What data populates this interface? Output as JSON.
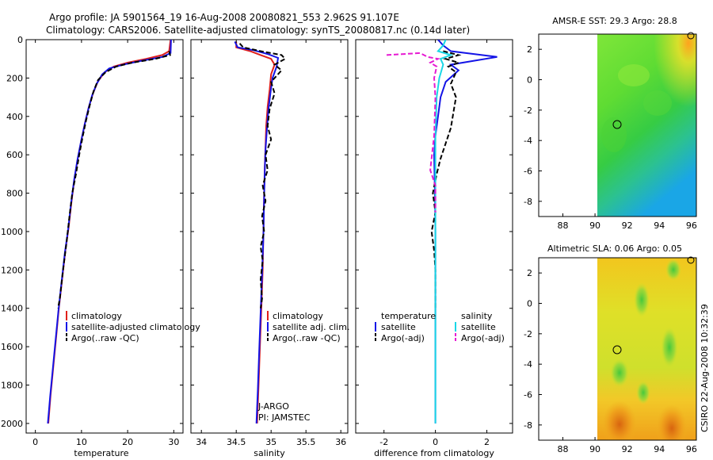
{
  "title_line1": "Argo profile: JA 5901564_19 16-Aug-2008 20080821_553 2.962S 91.107E",
  "title_line2": "Climatology: CARS2006. Satellite-adjusted climatology: synTS_20080817.nc (0.14d later)",
  "side_label": "CSIRO 22-Aug-2008 10:32:39",
  "colors": {
    "clim": "#e0201b",
    "sat": "#1414e6",
    "argo": "#000000",
    "sal_sat": "#19d7e6",
    "sal_argo": "#e619d2"
  },
  "chart_data": [
    {
      "id": "temperature",
      "type": "line",
      "xlabel": "temperature",
      "ylabel": "",
      "xlim": [
        -2,
        32
      ],
      "ylim": [
        2050,
        0
      ],
      "xticks": [
        "0",
        "10",
        "20",
        "30"
      ],
      "xtick_values": [
        0,
        10,
        20,
        30
      ],
      "yticks": [
        "0",
        "200",
        "400",
        "600",
        "800",
        "1000",
        "1200",
        "1400",
        "1600",
        "1800",
        "2000"
      ],
      "ytick_values": [
        0,
        200,
        400,
        600,
        800,
        1000,
        1200,
        1400,
        1600,
        1800,
        2000
      ],
      "legend": [
        "climatology",
        "satellite-adjusted climatology",
        "Argo(..raw -QC)"
      ],
      "series": [
        {
          "name": "climatology",
          "color": "#e0201b",
          "dash": false,
          "points": [
            [
              29.3,
              0
            ],
            [
              29.0,
              60
            ],
            [
              27.5,
              80
            ],
            [
              24,
              100
            ],
            [
              20,
              120
            ],
            [
              17,
              140
            ],
            [
              15,
              170
            ],
            [
              13.5,
              220
            ],
            [
              12.5,
              280
            ],
            [
              11.6,
              350
            ],
            [
              10.8,
              430
            ],
            [
              10,
              520
            ],
            [
              9.2,
              620
            ],
            [
              8.5,
              720
            ],
            [
              7.8,
              850
            ],
            [
              7.2,
              980
            ],
            [
              6.5,
              1100
            ],
            [
              5.8,
              1250
            ],
            [
              5.1,
              1400
            ],
            [
              4.5,
              1550
            ],
            [
              3.9,
              1700
            ],
            [
              3.3,
              1850
            ],
            [
              2.8,
              2000
            ]
          ]
        },
        {
          "name": "satellite-adjusted climatology",
          "color": "#1414e6",
          "dash": false,
          "points": [
            [
              29.4,
              0
            ],
            [
              29.3,
              70
            ],
            [
              27.5,
              90
            ],
            [
              23,
              110
            ],
            [
              19,
              130
            ],
            [
              16,
              150
            ],
            [
              14.5,
              180
            ],
            [
              13.3,
              230
            ],
            [
              12.3,
              290
            ],
            [
              11.5,
              360
            ],
            [
              10.7,
              440
            ],
            [
              9.9,
              530
            ],
            [
              9.1,
              630
            ],
            [
              8.4,
              730
            ],
            [
              7.7,
              860
            ],
            [
              7.1,
              990
            ],
            [
              6.4,
              1110
            ],
            [
              5.7,
              1260
            ],
            [
              5.0,
              1410
            ],
            [
              4.4,
              1560
            ],
            [
              3.8,
              1710
            ],
            [
              3.2,
              1860
            ],
            [
              2.7,
              2000
            ]
          ]
        },
        {
          "name": "Argo(..raw -QC)",
          "color": "#000000",
          "dash": true,
          "points": [
            [
              29.0,
              60
            ],
            [
              29.2,
              80
            ],
            [
              26,
              100
            ],
            [
              21,
              120
            ],
            [
              17.5,
              140
            ],
            [
              15.2,
              170
            ],
            [
              13.6,
              210
            ],
            [
              12.6,
              270
            ],
            [
              11.8,
              340
            ],
            [
              11.0,
              420
            ],
            [
              10.3,
              500
            ],
            [
              9.5,
              600
            ],
            [
              8.8,
              700
            ],
            [
              8.0,
              800
            ],
            [
              7.4,
              920
            ],
            [
              6.8,
              1050
            ],
            [
              6.0,
              1200
            ],
            [
              5.3,
              1350
            ],
            [
              4.9,
              1400
            ]
          ]
        }
      ]
    },
    {
      "id": "salinity",
      "type": "line",
      "xlabel": "salinity",
      "ylabel": "",
      "xlim": [
        33.85,
        36.1
      ],
      "ylim": [
        2050,
        0
      ],
      "xticks": [
        "34",
        "34.5",
        "35",
        "35.5",
        "36"
      ],
      "xtick_values": [
        34,
        34.5,
        35,
        35.5,
        36
      ],
      "legend": [
        "climatology",
        "satellite adj. clim.",
        "Argo(..raw -QC)"
      ],
      "annotations": [
        "J-ARGO",
        "PI: JAMSTEC"
      ],
      "series": [
        {
          "name": "climatology",
          "color": "#e0201b",
          "dash": false,
          "points": [
            [
              34.5,
              10
            ],
            [
              34.5,
              40
            ],
            [
              34.7,
              60
            ],
            [
              34.85,
              80
            ],
            [
              35.0,
              100
            ],
            [
              35.05,
              130
            ],
            [
              35.0,
              180
            ],
            [
              34.98,
              260
            ],
            [
              34.95,
              350
            ],
            [
              34.93,
              450
            ],
            [
              34.92,
              550
            ],
            [
              34.91,
              650
            ],
            [
              34.9,
              800
            ],
            [
              34.89,
              1000
            ],
            [
              34.88,
              1200
            ],
            [
              34.86,
              1400
            ],
            [
              34.84,
              1600
            ],
            [
              34.82,
              1800
            ],
            [
              34.8,
              2000
            ]
          ]
        },
        {
          "name": "satellite adj. clim.",
          "color": "#1414e6",
          "dash": false,
          "points": [
            [
              34.48,
              10
            ],
            [
              34.52,
              40
            ],
            [
              34.75,
              55
            ],
            [
              34.95,
              75
            ],
            [
              35.1,
              95
            ],
            [
              35.08,
              140
            ],
            [
              35.02,
              200
            ],
            [
              34.99,
              280
            ],
            [
              34.96,
              370
            ],
            [
              34.94,
              470
            ],
            [
              34.92,
              570
            ],
            [
              34.91,
              670
            ],
            [
              34.9,
              820
            ],
            [
              34.89,
              1020
            ],
            [
              34.87,
              1220
            ],
            [
              34.85,
              1420
            ],
            [
              34.83,
              1620
            ],
            [
              34.81,
              1820
            ],
            [
              34.79,
              2000
            ]
          ]
        },
        {
          "name": "Argo(..raw -QC)",
          "color": "#000000",
          "dash": true,
          "points": [
            [
              34.55,
              20
            ],
            [
              34.6,
              40
            ],
            [
              34.85,
              60
            ],
            [
              35.15,
              80
            ],
            [
              35.2,
              100
            ],
            [
              35.05,
              130
            ],
            [
              35.15,
              160
            ],
            [
              35.0,
              220
            ],
            [
              35.05,
              280
            ],
            [
              34.98,
              360
            ],
            [
              34.95,
              450
            ],
            [
              35.0,
              520
            ],
            [
              34.92,
              600
            ],
            [
              34.95,
              680
            ],
            [
              34.88,
              760
            ],
            [
              34.92,
              840
            ],
            [
              34.87,
              920
            ],
            [
              34.9,
              1000
            ],
            [
              34.85,
              1080
            ],
            [
              34.88,
              1150
            ],
            [
              34.85,
              1250
            ],
            [
              34.87,
              1350
            ],
            [
              34.85,
              1400
            ]
          ]
        }
      ]
    },
    {
      "id": "difference",
      "type": "line",
      "xlabel": "difference from climatology",
      "ylabel": "",
      "xlim": [
        -3.1,
        3.0
      ],
      "ylim": [
        2050,
        0
      ],
      "xticks": [
        "-2",
        "0",
        "2"
      ],
      "xtick_values": [
        -2,
        0,
        2
      ],
      "legend_temperature": [
        "temperature",
        "satellite",
        "Argo(-adj)"
      ],
      "legend_salinity": [
        "salinity",
        "satellite",
        "Argo(-adj)"
      ],
      "series": [
        {
          "name": "temperature satellite",
          "color": "#1414e6",
          "dash": false,
          "points": [
            [
              0.1,
              0
            ],
            [
              0.3,
              30
            ],
            [
              0.6,
              60
            ],
            [
              2.4,
              90
            ],
            [
              1.5,
              110
            ],
            [
              0.6,
              130
            ],
            [
              0.9,
              160
            ],
            [
              0.4,
              220
            ],
            [
              0.2,
              300
            ],
            [
              0.1,
              400
            ],
            [
              0.0,
              500
            ],
            [
              -0.05,
              600
            ],
            [
              -0.02,
              800
            ],
            [
              0.0,
              1000
            ],
            [
              0.0,
              1500
            ],
            [
              0.0,
              2000
            ]
          ]
        },
        {
          "name": "temperature Argo(-adj)",
          "color": "#000000",
          "dash": true,
          "points": [
            [
              0.3,
              60
            ],
            [
              0.9,
              80
            ],
            [
              0.4,
              100
            ],
            [
              0.9,
              120
            ],
            [
              0.5,
              140
            ],
            [
              0.8,
              170
            ],
            [
              0.6,
              230
            ],
            [
              0.8,
              300
            ],
            [
              0.7,
              380
            ],
            [
              0.6,
              460
            ],
            [
              0.4,
              540
            ],
            [
              0.2,
              620
            ],
            [
              0.05,
              700
            ],
            [
              -0.1,
              800
            ],
            [
              0.0,
              900
            ],
            [
              -0.15,
              1000
            ],
            [
              -0.05,
              1100
            ],
            [
              0.0,
              1200
            ],
            [
              0.0,
              1400
            ]
          ]
        },
        {
          "name": "salinity satellite",
          "color": "#19d7e6",
          "dash": false,
          "points": [
            [
              0.4,
              0
            ],
            [
              0.3,
              30
            ],
            [
              0.1,
              60
            ],
            [
              0.6,
              80
            ],
            [
              0.2,
              100
            ],
            [
              0.3,
              130
            ],
            [
              0.15,
              200
            ],
            [
              0.05,
              300
            ],
            [
              0.0,
              500
            ],
            [
              0.0,
              800
            ],
            [
              0.0,
              1200
            ],
            [
              0.0,
              1600
            ],
            [
              0.0,
              2000
            ]
          ]
        },
        {
          "name": "salinity Argo(-adj)",
          "color": "#e619d2",
          "dash": true,
          "points": [
            [
              -1.9,
              80
            ],
            [
              -0.6,
              70
            ],
            [
              -0.3,
              90
            ],
            [
              0.1,
              100
            ],
            [
              -0.2,
              120
            ],
            [
              0.05,
              140
            ],
            [
              -0.05,
              200
            ],
            [
              0.0,
              300
            ],
            [
              -0.05,
              500
            ],
            [
              -0.2,
              680
            ],
            [
              0.0,
              760
            ],
            [
              0.0,
              900
            ]
          ]
        }
      ]
    },
    {
      "id": "sst_map",
      "type": "heatmap",
      "title": "AMSR-E SST: 29.3 Argo: 28.8",
      "xlim": [
        86.5,
        96.3
      ],
      "ylim": [
        -9,
        3
      ],
      "xticks": [
        "88",
        "90",
        "92",
        "94",
        "96"
      ],
      "xtick_values": [
        88,
        90,
        92,
        94,
        96
      ],
      "yticks": [
        "2",
        "0",
        "-2",
        "-4",
        "-6",
        "-8"
      ],
      "ytick_values": [
        2,
        0,
        -2,
        -4,
        -6,
        -8
      ],
      "data_extent_x": [
        90,
        96.3
      ],
      "float_position": {
        "lon": 91.107,
        "lat": -2.962
      }
    },
    {
      "id": "sla_map",
      "type": "heatmap",
      "title": "Altimetric SLA: 0.06 Argo: 0.05",
      "xlim": [
        86.5,
        96.3
      ],
      "ylim": [
        -9,
        3
      ],
      "xticks": [
        "88",
        "90",
        "92",
        "94",
        "96"
      ],
      "xtick_values": [
        88,
        90,
        92,
        94,
        96
      ],
      "yticks": [
        "2",
        "0",
        "-2",
        "-4",
        "-6",
        "-8"
      ],
      "ytick_values": [
        2,
        0,
        -2,
        -4,
        -6,
        -8
      ],
      "data_extent_x": [
        90,
        96.3
      ],
      "float_position": {
        "lon": 91.107,
        "lat": -2.962
      }
    }
  ]
}
